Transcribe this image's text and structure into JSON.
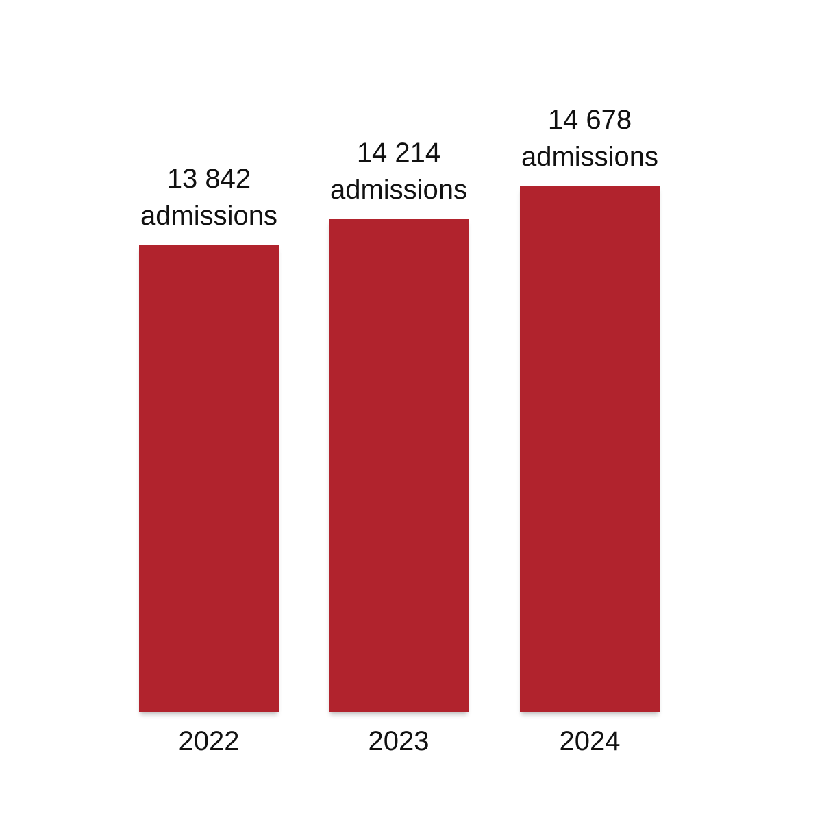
{
  "chart_data": {
    "type": "bar",
    "categories": [
      "2022",
      "2023",
      "2024"
    ],
    "values": [
      13842,
      14214,
      14678
    ],
    "bars": [
      {
        "year": "2022",
        "value_text": "13 842",
        "unit_text": "admissions"
      },
      {
        "year": "2023",
        "value_text": "14 214",
        "unit_text": "admissions"
      },
      {
        "year": "2024",
        "value_text": "14 678",
        "unit_text": "admissions"
      }
    ],
    "title": "",
    "xlabel": "",
    "ylabel": "",
    "legend": "none",
    "grid": "off",
    "axes": "none — no axis lines or ticks; value labels above each bar, year labels below each bar",
    "colors": {
      "bar": "#b1232d",
      "text": "#111111",
      "background": "#ffffff"
    }
  }
}
